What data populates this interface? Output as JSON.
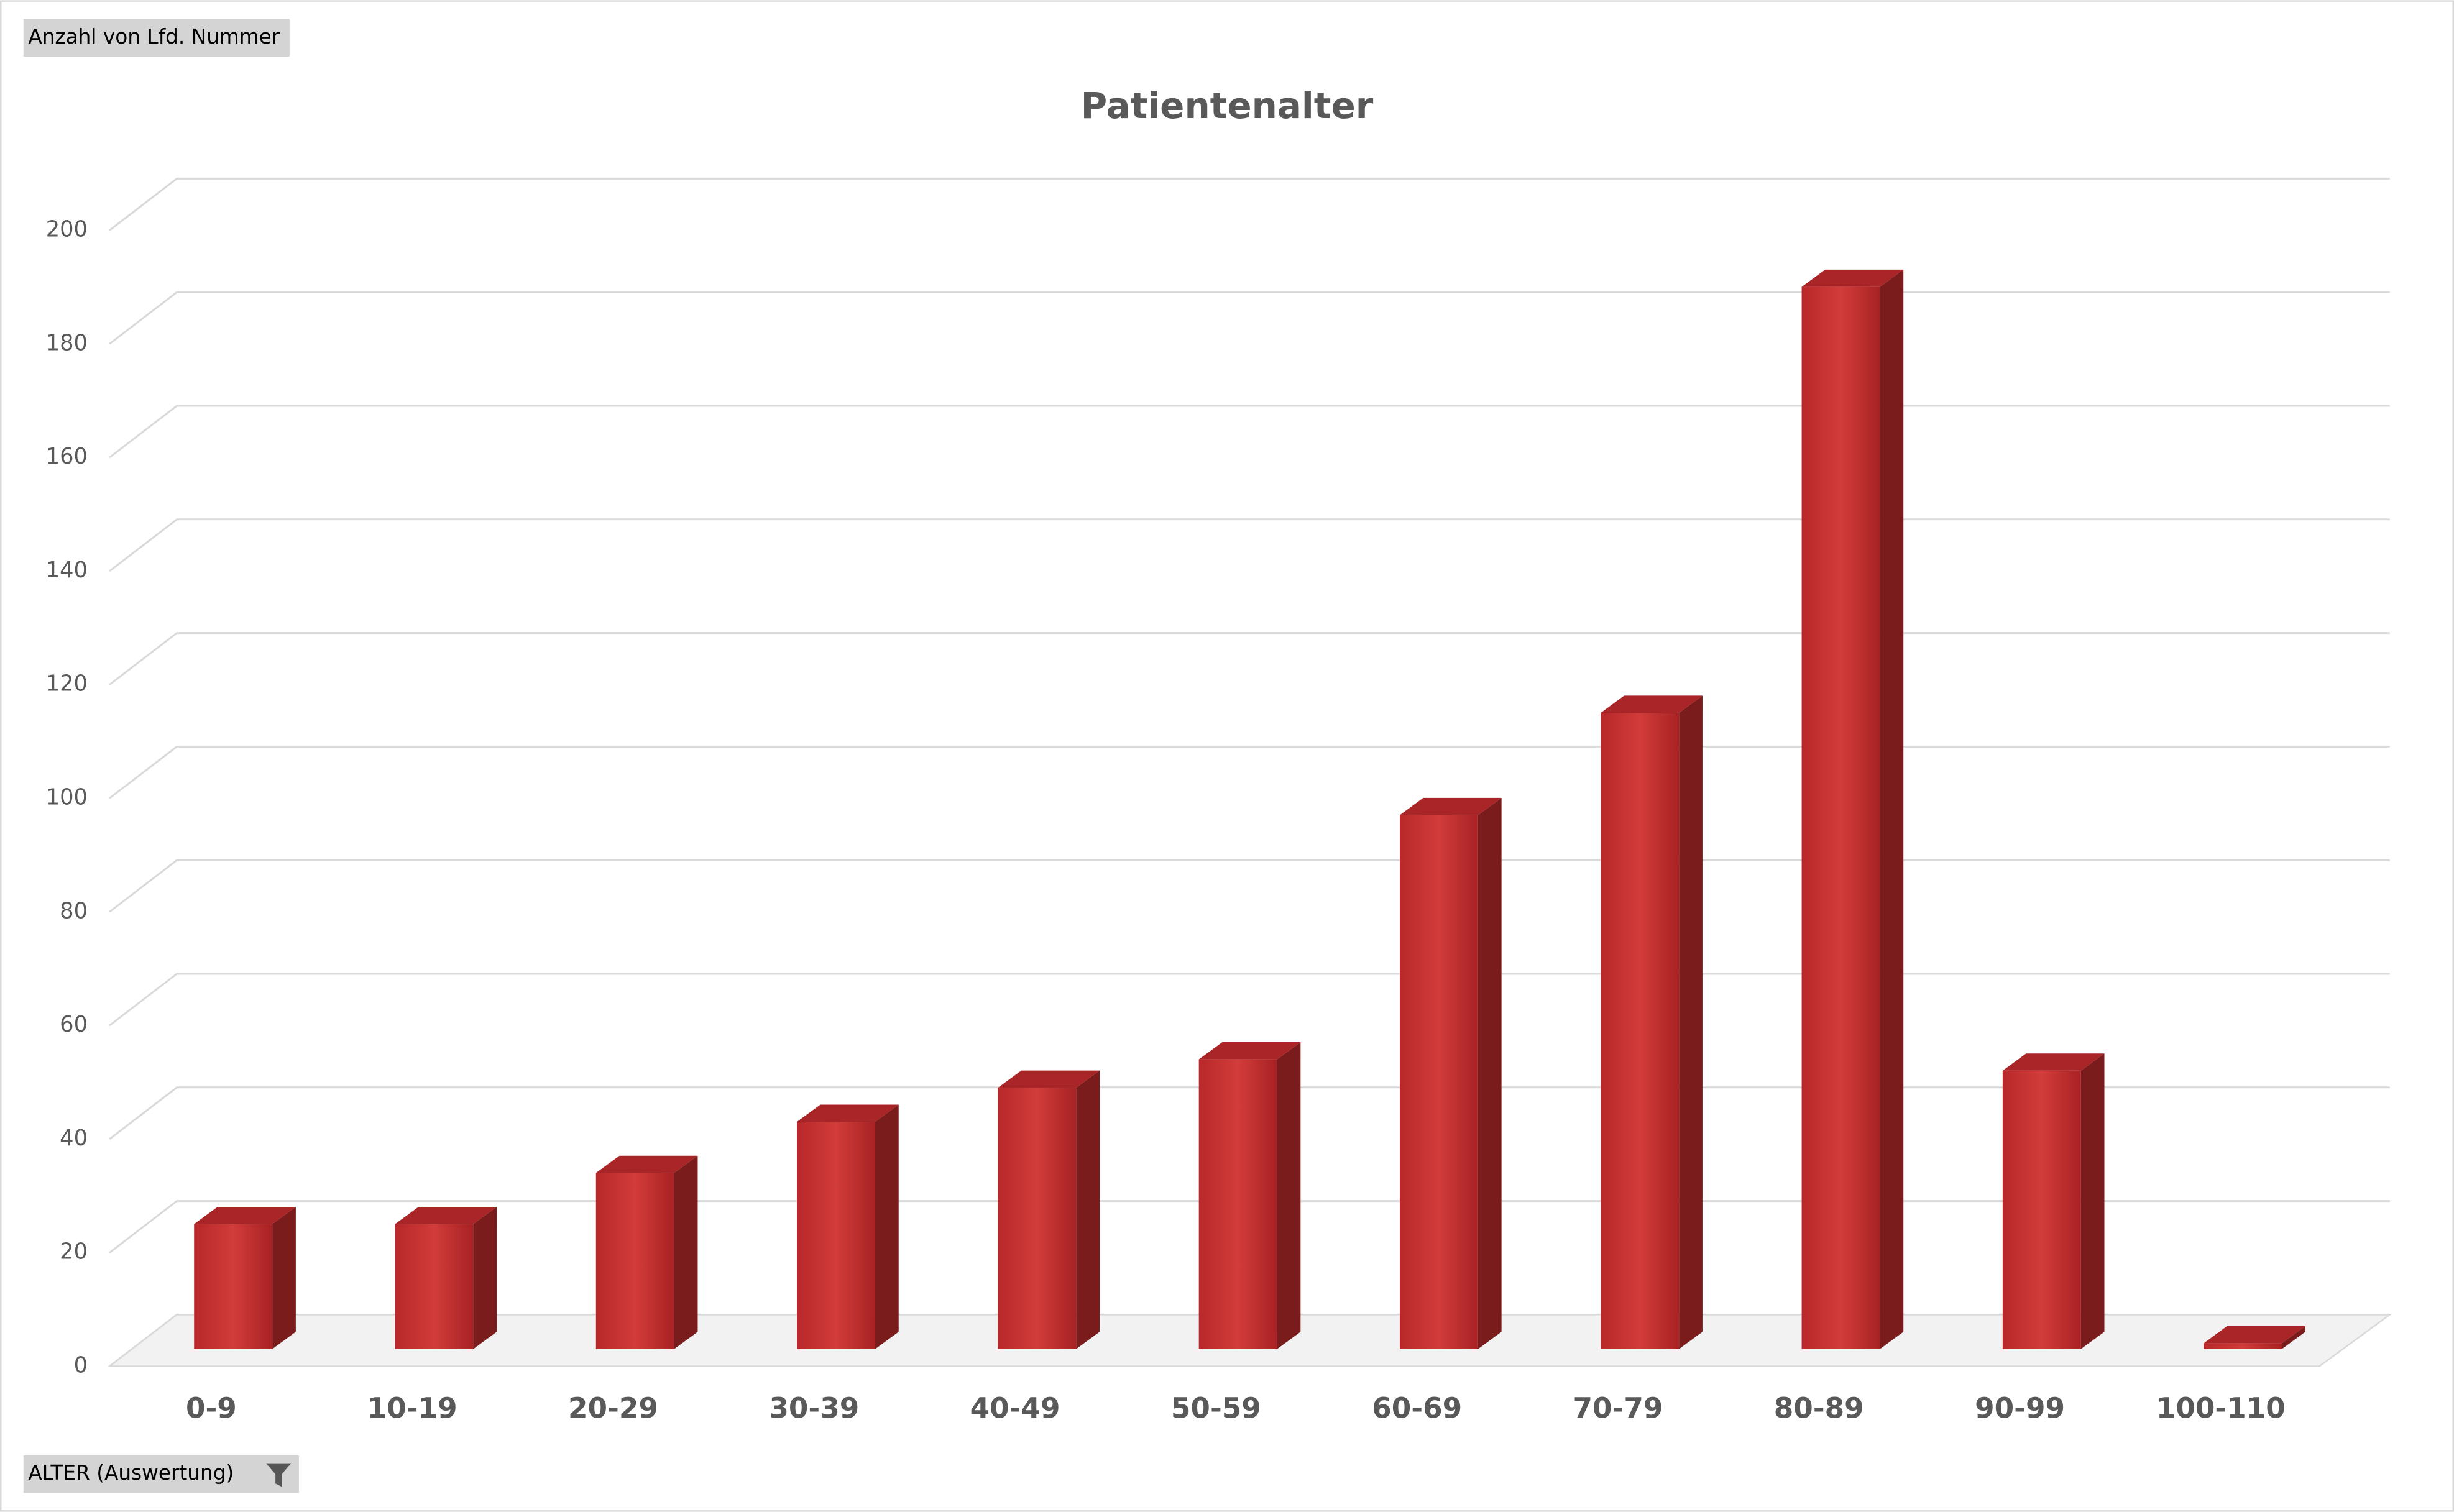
{
  "chart_data": {
    "type": "bar",
    "title": "Patientenalter",
    "field_buttons": [
      "Anzahl von Lfd. Nummer",
      "ALTER (Auswertung)"
    ],
    "categories": [
      "0-9",
      "10-19",
      "20-29",
      "30-39",
      "40-49",
      "50-59",
      "60-69",
      "70-79",
      "80-89",
      "90-99",
      "100-110"
    ],
    "values": [
      22,
      22,
      31,
      40,
      46,
      51,
      94,
      112,
      187,
      49,
      1
    ],
    "color": "#c8302e",
    "ylim": [
      0,
      200
    ],
    "yticks": [
      0,
      20,
      40,
      60,
      80,
      100,
      120,
      140,
      160,
      180,
      200
    ],
    "grid": true
  }
}
